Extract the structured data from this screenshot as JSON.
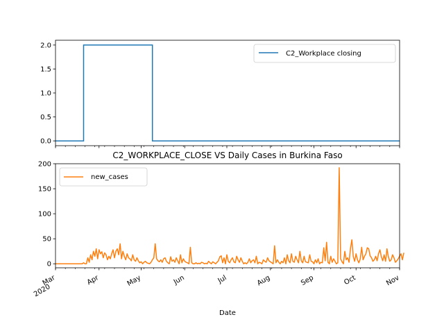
{
  "chart_data": [
    {
      "type": "line",
      "title": "",
      "xlabel": "",
      "ylabel": "",
      "ylim": [
        -0.1,
        2.1
      ],
      "yticks": [
        0.0,
        0.5,
        1.0,
        1.5,
        2.0
      ],
      "ytick_labels": [
        "0.0",
        "0.5",
        "1.0",
        "1.5",
        "2.0"
      ],
      "legend_position": "upper-right",
      "series": [
        {
          "name": "C2_Workplace closing",
          "color": "#1f77b4",
          "points": [
            [
              "2020-03-01",
              0
            ],
            [
              "2020-03-21",
              0
            ],
            [
              "2020-03-21",
              2
            ],
            [
              "2020-05-09",
              2
            ],
            [
              "2020-05-09",
              0
            ],
            [
              "2020-11-01",
              0
            ]
          ]
        }
      ]
    },
    {
      "type": "line",
      "title": "C2_WORKPLACE_CLOSE VS Daily Cases in Burkina Faso",
      "xlabel": "Date",
      "ylabel": "",
      "ylim": [
        -8,
        200
      ],
      "yticks": [
        0,
        50,
        100,
        150,
        200
      ],
      "ytick_labels": [
        "0",
        "50",
        "100",
        "150",
        "200"
      ],
      "legend_position": "upper-left",
      "x_range": [
        "2020-03-01",
        "2020-11-01"
      ],
      "x_ticks": [
        {
          "date": "2020-03-01",
          "label": "Mar",
          "sublabel": "2020"
        },
        {
          "date": "2020-04-01",
          "label": "Apr",
          "sublabel": ""
        },
        {
          "date": "2020-05-01",
          "label": "May",
          "sublabel": ""
        },
        {
          "date": "2020-06-01",
          "label": "Jun",
          "sublabel": ""
        },
        {
          "date": "2020-07-01",
          "label": "Jul",
          "sublabel": ""
        },
        {
          "date": "2020-08-01",
          "label": "Aug",
          "sublabel": ""
        },
        {
          "date": "2020-09-01",
          "label": "Sep",
          "sublabel": ""
        },
        {
          "date": "2020-10-01",
          "label": "Oct",
          "sublabel": ""
        },
        {
          "date": "2020-11-01",
          "label": "Nov",
          "sublabel": ""
        }
      ],
      "series": [
        {
          "name": "new_cases",
          "color": "#ff7f0e",
          "start_date": "2020-03-01",
          "values": [
            0,
            0,
            0,
            0,
            0,
            0,
            0,
            0,
            0,
            0,
            0,
            0,
            0,
            0,
            0,
            0,
            0,
            0,
            0,
            0,
            2,
            0,
            0,
            12,
            3,
            18,
            8,
            25,
            15,
            30,
            10,
            28,
            20,
            24,
            12,
            22,
            18,
            8,
            15,
            10,
            20,
            28,
            12,
            25,
            30,
            18,
            40,
            10,
            25,
            15,
            8,
            20,
            12,
            10,
            6,
            18,
            8,
            5,
            12,
            6,
            2,
            4,
            0,
            3,
            5,
            2,
            1,
            0,
            3,
            8,
            12,
            40,
            10,
            6,
            4,
            8,
            3,
            10,
            12,
            5,
            2,
            0,
            14,
            5,
            8,
            3,
            12,
            6,
            0,
            18,
            2,
            10,
            5,
            3,
            2,
            0,
            33,
            2,
            0,
            0,
            2,
            0,
            1,
            0,
            3,
            2,
            0,
            1,
            0,
            5,
            2,
            0,
            4,
            2,
            0,
            3,
            6,
            14,
            16,
            2,
            12,
            0,
            18,
            5,
            2,
            8,
            12,
            4,
            2,
            15,
            8,
            3,
            12,
            5,
            0,
            2,
            0,
            3,
            10,
            2,
            6,
            8,
            2,
            15,
            0,
            3,
            2,
            0,
            8,
            5,
            3,
            12,
            6,
            4,
            2,
            0,
            36,
            2,
            8,
            3,
            0,
            5,
            2,
            12,
            0,
            18,
            6,
            2,
            20,
            5,
            3,
            15,
            8,
            2,
            25,
            6,
            2,
            15,
            4,
            3,
            2,
            18,
            5,
            4,
            0,
            8,
            2,
            10,
            0,
            3,
            2,
            32,
            6,
            43,
            3,
            0,
            15,
            3,
            10,
            5,
            0,
            2,
            192,
            10,
            4,
            0,
            25,
            8,
            12,
            3,
            30,
            48,
            15,
            5,
            20,
            8,
            2,
            10,
            33,
            8,
            15,
            20,
            32,
            30,
            16,
            12,
            5,
            8,
            15,
            6,
            20,
            28,
            14,
            6,
            18,
            5,
            30,
            14,
            5,
            8,
            18,
            12,
            3,
            6,
            10,
            15,
            20,
            8,
            22
          ]
        }
      ]
    }
  ]
}
